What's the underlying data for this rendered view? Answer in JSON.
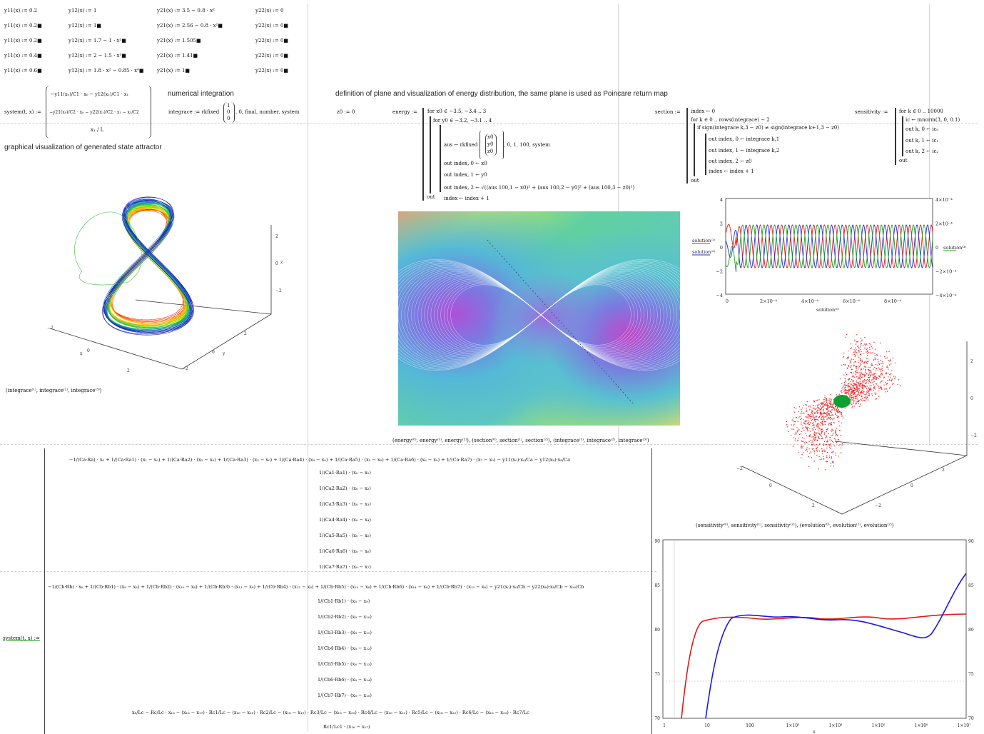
{
  "defs": {
    "y11": [
      "y11(x) := 0.2",
      "y11(x) := 0.2■",
      "y11(x) := 0.2■",
      "y11(x) := 0.4■",
      "y11(x) := 0.6■"
    ],
    "y12": [
      "y12(x) := 1",
      "y12(x) := 1■",
      "y12(x) := 1.7 − 1 · x²■",
      "y12(x) := 2 − 1.5 · x²■",
      "y12(x) := 1.8 · x² − 0.85 · x⁴■"
    ],
    "y21": [
      "y21(x) := 3.5 − 0.8 · x²",
      "y21(x) := 2.56 − 0.8 · x²■",
      "y21(x) := 1.505■",
      "y21(x) := 1.41■",
      "y21(x) := 1■"
    ],
    "y22": [
      "y22(x) := 0",
      "y22(x) := 0■",
      "y22(x) := 0■",
      "y22(x) := 0■",
      "y22(x) := 0■"
    ]
  },
  "system_small": {
    "label": "system(t, x) :=",
    "row1": "−y11(x₀)/C1 · x₀ − y12(x₁)/C1 · x₁",
    "row2": "−y21(x₀)/C2 · x₀ − y22(x₁)/C2 · x₁ − x₂/C2",
    "row3": "x₁ / L"
  },
  "numint": {
    "title": "numerical integration",
    "expr": "integrace := rkfixed",
    "vec": [
      "1",
      "0",
      "0"
    ],
    "args": ", 0, final, number, system"
  },
  "plane_title": "definition of plane and visualization of energy distribution, the same plane is used as Poincare return map",
  "z0": "z0 := 0",
  "energy": {
    "label": "energy :=",
    "lines": [
      "for x0 ∈ −3.5, −3.4 .. 3",
      "for y0 ∈ −3.2, −3.1 .. 4",
      "aus ← rkfixed",
      ", 0, 1, 100, system",
      "out index, 0 ← x0",
      "out index, 1 ← y0",
      "out index, 2 ← √((aus 100,1 − x0)² + (aus 100,2 − y0)² + (aus 100,3 − z0)²)",
      "index ← index + 1",
      "out"
    ],
    "vec": [
      "x0",
      "y0",
      "z0"
    ]
  },
  "section": {
    "label": "section :=",
    "lines": [
      "index ← 0",
      "for k ∈ 0 .. rows(integrace) − 2",
      "if sign(integrace k,3 − z0) ≠ sign(integrace k+1,3 − z0)",
      "out index, 0 ← integrace k,1",
      "out index, 1 ← integrace k,2",
      "out index, 2 ← z0",
      "index ← index + 1",
      "out"
    ]
  },
  "sensitivity": {
    "label": "sensitivity :=",
    "lines": [
      "for k ∈ 0 .. 10000",
      "ic ← mnorm(3, 0, 0.1)",
      "out k, 0 ← ic₀",
      "out k, 1 ← ic₁",
      "out k, 2 ← ic₂",
      "out"
    ]
  },
  "graph_title": "graphical visualization of generated state attractor",
  "attractor": {
    "caption": "(integrace⁽¹⁾, integrace⁽²⁾, integrace⁽³⁾)",
    "zticks": [
      "2",
      "0",
      "−2"
    ],
    "xticks": [
      "−2",
      "0",
      "2"
    ],
    "yticks": [
      "−2",
      "0",
      "2"
    ],
    "xlabel": "x",
    "ylabel": "y",
    "zlabel": "z"
  },
  "energy_plot": {
    "caption": "(energy⁽⁰⁾, energy⁽¹⁾, energy⁽²⁾), (section⁽⁰⁾, section⁽¹⁾, section⁽²⁾), (integrace⁽¹⁾, integrace⁽²⁾, integrace⁽³⁾)"
  },
  "time_plot": {
    "yticks_left": [
      "4",
      "2",
      "0",
      "−2",
      "−4"
    ],
    "yticks_right": [
      "4×10⁻⁴",
      "2×10⁻⁴",
      "0",
      "−2×10⁻⁴",
      "−4×10⁻⁴"
    ],
    "xticks": [
      "0",
      "2×10⁻⁴",
      "4×10⁻⁴",
      "6×10⁻⁴",
      "8×10⁻⁴"
    ],
    "ylabel1": "solution⁽¹⁾",
    "ylabel2": "solution⁽²⁾",
    "ylabel_right": "solution⁽³⁾",
    "xlabel": "solution⁽⁰⁾",
    "colors": [
      "#e02020",
      "#2030d0",
      "#20a020"
    ]
  },
  "scatter3d": {
    "caption": "(sensitivity⁽⁰⁾, sensitivity⁽¹⁾, sensitivity⁽²⁾), (evolution⁽⁰⁾, evolution⁽¹⁾, evolution⁽²⁾)",
    "zticks": [
      "2",
      "0",
      "−2"
    ],
    "xticks": [
      "−2",
      "0",
      "2"
    ],
    "yticks": [
      "−2",
      "0",
      "2"
    ]
  },
  "big_system": {
    "label": "system(t, x) :=",
    "row_a": "−1/(Ca·Ra) · x₀ + 1/(Ca·Ra1) · (x₁ − x₀) + 1/(Ca·Ra2) · (x₂ − x₀) + 1/(Ca·Ra3) · (x₃ − x₀) + 1/(Ca·Ra4) · (x₄ − x₀) + 1/(Ca·Ra5) · (x₅ − x₀) + 1/(Ca·Ra6) · (x₆ − x₀) + 1/(Ca·Ra7) · (x₇ − x₀) − y11(x₀)·x₀/Ca − y12(x₈)·x₈/Ca",
    "col_a": [
      "1/(Ca1·Ra1) · (x₀ − x₁)",
      "1/(Ca2·Ra2) · (x₀ − x₂)",
      "1/(Ca3·Ra3) · (x₀ − x₃)",
      "1/(Ca4·Ra4) · (x₀ − x₄)",
      "1/(Ca5·Ra5) · (x₀ − x₅)",
      "1/(Ca6·Ra6) · (x₀ − x₆)",
      "1/(Ca7·Ra7) · (x₀ − x₇)"
    ],
    "row_b": "−1/(Cb·Rb) · x₈ + 1/(Cb·Rb1) · (x₉ − x₈) + 1/(Cb·Rb2) · (x₁₀ − x₈) + 1/(Cb·Rb3) · (x₁₁ − x₈) + 1/(Cb·Rb4) · (x₁₂ − x₈) + 1/(Cb·Rb5) · (x₁₃ − x₈) + 1/(Cb·Rb6) · (x₁₄ − x₈) + 1/(Cb·Rb7) · (x₁₅ − x₈) − y21(x₀)·x₀/Cb − y22(x₈)·x₈/Cb − x₁₆/Cb",
    "col_b": [
      "1/(Cb1·Rb1) · (x₈ − x₉)",
      "1/(Cb2·Rb2) · (x₈ − x₁₀)",
      "1/(Cb3·Rb3) · (x₈ − x₁₁)",
      "1/(Cb4·Rb4) · (x₈ − x₁₂)",
      "1/(Cb5·Rb5) · (x₈ − x₁₃)",
      "1/(Cb6·Rb6) · (x₈ − x₁₄)",
      "1/(Cb7·Rb7) · (x₈ − x₁₅)"
    ],
    "row_c": "x₈/Lc − Rc/Lc · x₁₆ − (x₁₆ − x₁₇) · Rc1/Lc − (x₁₆ − x₁₈) · Rc2/Lc − (x₁₆ − x₁₉) · Rc3/Lc − (x₁₆ − x₂₀) · Rc4/Lc − (x₁₆ − x₂₁) · Rc5/Lc − (x₁₆ − x₂₂) · Rc6/Lc − (x₁₆ − x₂₃) · Rc7/Lc",
    "row_c2": "Rc1/Lc1 · (x₁₆ − x₁₇)"
  },
  "log_plot": {
    "yticks": [
      "90",
      "85",
      "80",
      "75",
      "70"
    ],
    "xticks": [
      "1",
      "10",
      "100",
      "1×10³",
      "1×10⁴",
      "1×10⁵",
      "1×10⁶",
      "1×10⁷"
    ],
    "xlabel": "x",
    "colors": [
      "#e01818",
      "#1818e0"
    ]
  }
}
